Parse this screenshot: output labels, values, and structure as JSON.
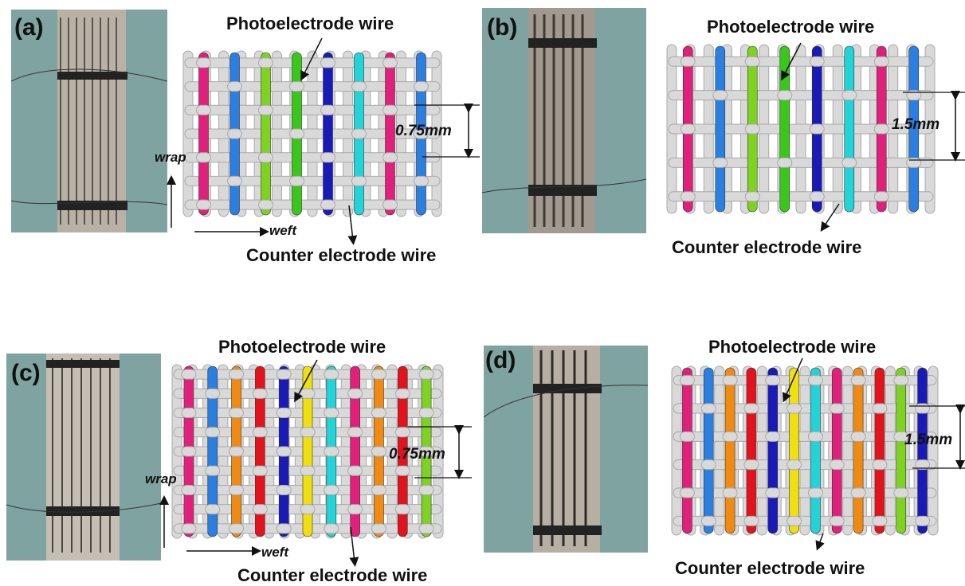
{
  "panels": [
    {
      "id": "a",
      "label": "(a)",
      "top_label": "Photoelectrode wire",
      "bottom_label": "Counter electrode wire",
      "spacing": "0.75mm",
      "wrap": "wrap",
      "weft": "weft",
      "colors": [
        "#e0207a",
        "#2a7fe0",
        "#7ed321",
        "#39c81a",
        "#1a1ab8",
        "#22d3d8",
        "#e0207a",
        "#2a7fe0"
      ]
    },
    {
      "id": "b",
      "label": "(b)",
      "top_label": "Photoelectrode wire",
      "bottom_label": "Counter electrode wire",
      "spacing": "1.5mm",
      "colors": [
        "#e0207a",
        "#2a7fe0",
        "#7ed321",
        "#39c81a",
        "#1a1ab8",
        "#22d3d8",
        "#e0207a",
        "#2a7fe0"
      ]
    },
    {
      "id": "c",
      "label": "(c)",
      "top_label": "Photoelectrode wire",
      "bottom_label": "Counter electrode wire",
      "spacing": "0.75mm",
      "wrap": "wrap",
      "weft": "weft",
      "colors": [
        "#e0207a",
        "#2a7fe0",
        "#f08a12",
        "#e3131e",
        "#1a1ab8",
        "#f0e010",
        "#22d3d8",
        "#e0207a",
        "#f08a12",
        "#e3131e",
        "#7ed321"
      ]
    },
    {
      "id": "d",
      "label": "(d)",
      "top_label": "Photoelectrode wire",
      "bottom_label": "Counter electrode wire",
      "spacing": "1.5mm",
      "colors": [
        "#e0207a",
        "#2a7fe0",
        "#f08a12",
        "#e3131e",
        "#1a1ab8",
        "#f0e010",
        "#22d3d8",
        "#e0207a",
        "#f08a12",
        "#e3131e",
        "#7ed321",
        "#1a1ab8"
      ]
    }
  ],
  "style": {
    "thread_gray": "#d9d9d9",
    "thread_edge": "#a9a9a9",
    "fabric_bg": "#7fa3a0"
  }
}
